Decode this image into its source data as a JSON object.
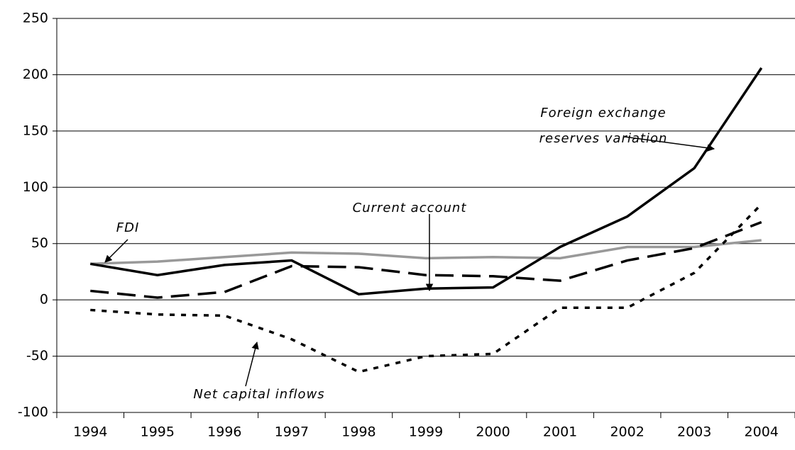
{
  "chart_data": {
    "type": "line",
    "categories": [
      "1994",
      "1995",
      "1996",
      "1997",
      "1998",
      "1999",
      "2000",
      "2001",
      "2002",
      "2003",
      "2004"
    ],
    "series": [
      {
        "color": "#999999",
        "style": "solid",
        "values": [
          32,
          34,
          38,
          42,
          41,
          37,
          38,
          37,
          47,
          47,
          53
        ]
      },
      {
        "color": "#000000",
        "style": "dashed",
        "values": [
          8,
          2,
          7,
          30,
          29,
          22,
          21,
          17,
          35,
          46,
          69
        ]
      },
      {
        "color": "#000000",
        "style": "dotted",
        "values": [
          -9,
          -13,
          -14,
          -35,
          -64,
          -50,
          -48,
          -7,
          -7,
          24,
          85
        ]
      },
      {
        "color": "#000000",
        "style": "solid",
        "values": [
          32,
          22,
          31,
          35,
          5,
          10,
          11,
          47,
          74,
          117,
          206
        ]
      }
    ],
    "annotations": [
      {
        "text": [
          "Foreign exchange",
          "reserves variation"
        ]
      },
      {
        "text": [
          "Current account"
        ]
      },
      {
        "text": [
          "FDI"
        ]
      },
      {
        "text": [
          "Net capital inflows"
        ]
      }
    ],
    "ylim": [
      -100,
      250
    ],
    "yticks": [
      -100,
      -50,
      0,
      50,
      100,
      150,
      200,
      250
    ],
    "grid": true
  }
}
